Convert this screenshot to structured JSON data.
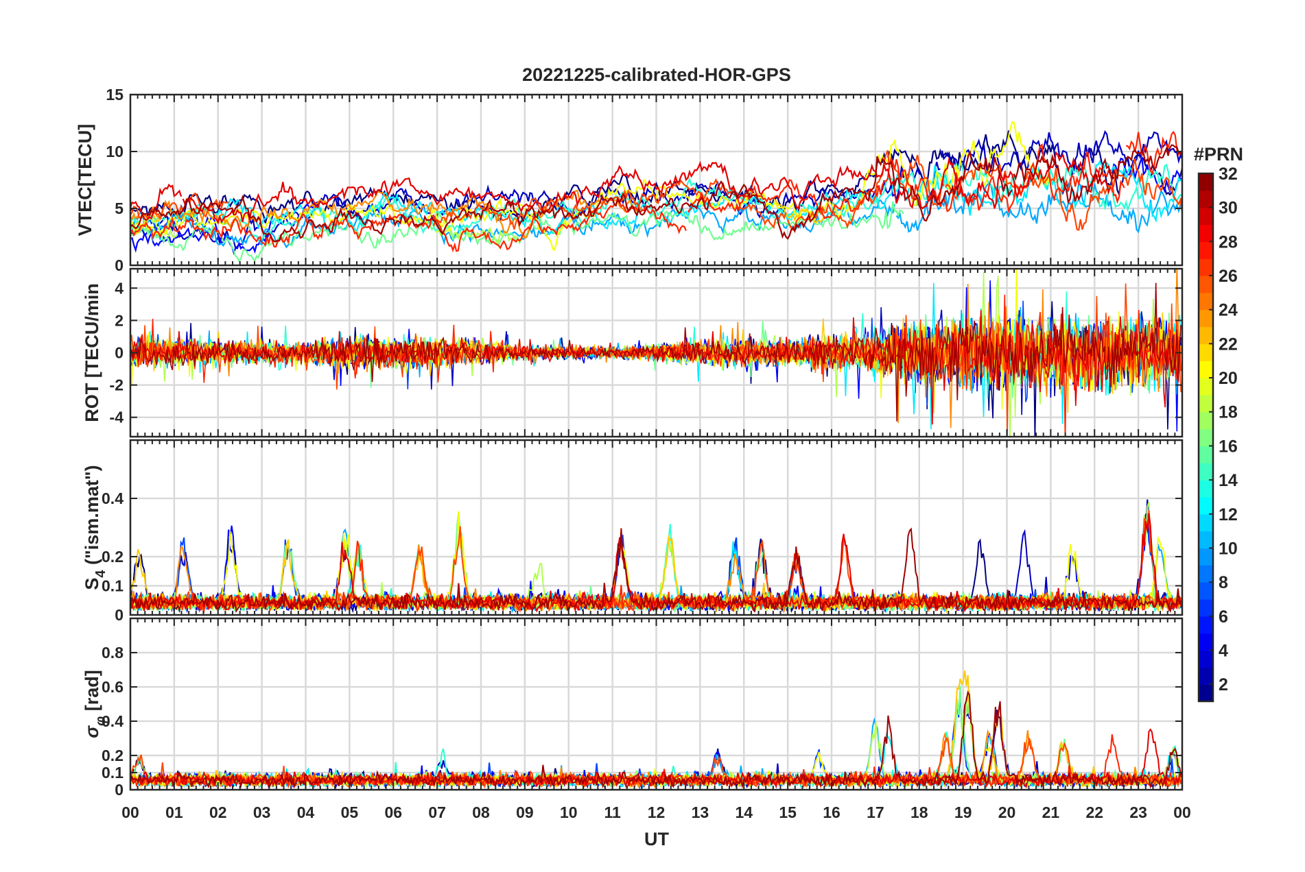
{
  "chart_data": {
    "type": "line",
    "title": "20221225-calibrated-HOR-GPS",
    "xlabel": "UT",
    "x_tick_labels": [
      "00",
      "01",
      "02",
      "03",
      "04",
      "05",
      "06",
      "07",
      "08",
      "09",
      "10",
      "11",
      "12",
      "13",
      "14",
      "15",
      "16",
      "17",
      "18",
      "19",
      "20",
      "21",
      "22",
      "23",
      "00"
    ],
    "xlim_hours": [
      0,
      24
    ],
    "grid": true,
    "panels": [
      {
        "id": "vtec",
        "ylabel": "VTEC[TECU]",
        "ylim": [
          0,
          15
        ],
        "yticks": [
          0,
          5,
          10,
          15
        ],
        "ytick_labels": [
          "0",
          "5",
          "10",
          "15"
        ],
        "baseline": [
          [
            0,
            3.6
          ],
          [
            1,
            4.0
          ],
          [
            2,
            4.2
          ],
          [
            3,
            3.7
          ],
          [
            4,
            4.4
          ],
          [
            5,
            4.6
          ],
          [
            6,
            4.8
          ],
          [
            7,
            4.2
          ],
          [
            8,
            3.8
          ],
          [
            9,
            3.9
          ],
          [
            10,
            4.6
          ],
          [
            11,
            5.1
          ],
          [
            12,
            5.0
          ],
          [
            13,
            5.4
          ],
          [
            14,
            4.6
          ],
          [
            15,
            4.3
          ],
          [
            16,
            5.0
          ],
          [
            17,
            5.8
          ],
          [
            18,
            6.5
          ],
          [
            19,
            6.7
          ],
          [
            20,
            7.4
          ],
          [
            21,
            7.1
          ],
          [
            22,
            6.4
          ],
          [
            23,
            6.8
          ],
          [
            24,
            6.6
          ]
        ],
        "spread": 1.6
      },
      {
        "id": "rot",
        "ylabel": "ROT [TECU/min",
        "ylim": [
          -5.2,
          5.2
        ],
        "yticks": [
          -4,
          -2,
          0,
          2,
          4
        ],
        "ytick_labels": [
          "-4",
          "-2",
          "0",
          "2",
          "4"
        ],
        "noise_envelope": [
          [
            0,
            0.9
          ],
          [
            2,
            0.7
          ],
          [
            4,
            0.6
          ],
          [
            5,
            1.0
          ],
          [
            7,
            0.9
          ],
          [
            9,
            0.4
          ],
          [
            11,
            0.3
          ],
          [
            13,
            0.7
          ],
          [
            15,
            0.8
          ],
          [
            17,
            1.2
          ],
          [
            18,
            2.0
          ],
          [
            20,
            2.3
          ],
          [
            22,
            2.0
          ],
          [
            24,
            2.2
          ]
        ]
      },
      {
        "id": "s4",
        "ylabel_base": "S",
        "ylabel_sub": "4",
        "ylabel_rest": "(\"ism.mat\")",
        "ylim": [
          0,
          0.6
        ],
        "yticks": [
          0,
          0.1,
          0.2,
          0.4
        ],
        "ytick_labels": [
          "0",
          "0.1",
          "0.2",
          "0.4"
        ],
        "baseline_level": 0.03,
        "peaks": [
          [
            0.2,
            0.2
          ],
          [
            1.2,
            0.23
          ],
          [
            2.3,
            0.28
          ],
          [
            3.6,
            0.26
          ],
          [
            4.9,
            0.27
          ],
          [
            5.2,
            0.21
          ],
          [
            6.6,
            0.21
          ],
          [
            7.5,
            0.31
          ],
          [
            9.3,
            0.16
          ],
          [
            11.2,
            0.25
          ],
          [
            12.3,
            0.26
          ],
          [
            13.8,
            0.21
          ],
          [
            14.4,
            0.21
          ],
          [
            15.2,
            0.19
          ],
          [
            16.3,
            0.24
          ],
          [
            17.8,
            0.27
          ],
          [
            19.4,
            0.24
          ],
          [
            20.4,
            0.26
          ],
          [
            21.5,
            0.21
          ],
          [
            23.2,
            0.37
          ],
          [
            23.5,
            0.24
          ]
        ]
      },
      {
        "id": "sigphi",
        "ylabel_base": "σ",
        "ylabel_sub": "φ",
        "ylabel_rest": "[rad]",
        "ylim": [
          0,
          1.0
        ],
        "yticks": [
          0,
          0.1,
          0.2,
          0.4,
          0.6,
          0.8
        ],
        "ytick_labels": [
          "0",
          "0.1",
          "0.2",
          "0.4",
          "0.6",
          "0.8"
        ],
        "baseline_level": 0.04,
        "peaks": [
          [
            0.2,
            0.14
          ],
          [
            7.1,
            0.15
          ],
          [
            13.4,
            0.17
          ],
          [
            15.7,
            0.17
          ],
          [
            17.0,
            0.38
          ],
          [
            17.3,
            0.36
          ],
          [
            18.6,
            0.29
          ],
          [
            18.9,
            0.6
          ],
          [
            19.1,
            0.61
          ],
          [
            19.6,
            0.3
          ],
          [
            19.8,
            0.5
          ],
          [
            20.5,
            0.32
          ],
          [
            21.3,
            0.28
          ],
          [
            22.4,
            0.28
          ],
          [
            23.3,
            0.36
          ],
          [
            23.8,
            0.2
          ]
        ]
      }
    ],
    "colorbar": {
      "label": "#PRN",
      "range": [
        1,
        32
      ],
      "tick_labels": [
        "2",
        "4",
        "6",
        "8",
        "10",
        "12",
        "14",
        "16",
        "18",
        "20",
        "22",
        "24",
        "26",
        "28",
        "30",
        "32"
      ],
      "tick_values": [
        2,
        4,
        6,
        8,
        10,
        12,
        14,
        16,
        18,
        20,
        22,
        24,
        26,
        28,
        30,
        32
      ],
      "colormap": "jet",
      "satellites": [
        1,
        3,
        5,
        7,
        10,
        12,
        14,
        16,
        18,
        20,
        22,
        24,
        26,
        27,
        29,
        31
      ]
    }
  }
}
